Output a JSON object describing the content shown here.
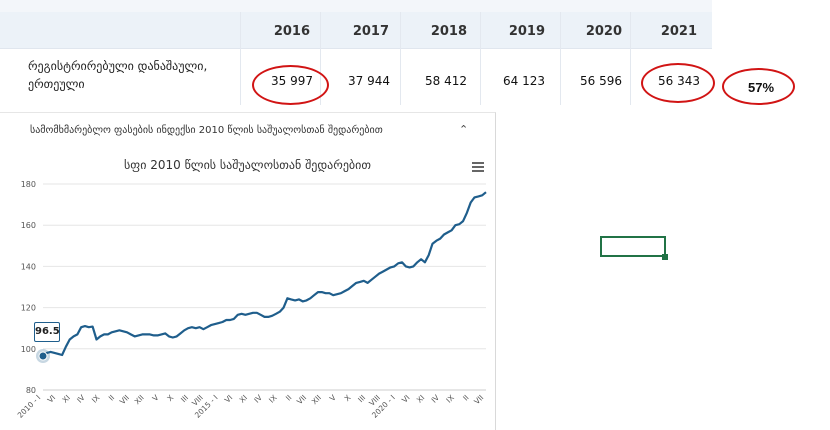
{
  "table": {
    "years": [
      "2016",
      "2017",
      "2018",
      "2019",
      "2020",
      "2021"
    ],
    "row_label_line1": "რეგისტრირებული დანაშაული,",
    "row_label_line2": "ერთეული",
    "values": [
      "35 997",
      "37 944",
      "58 412",
      "64 123",
      "56 596",
      "56 343"
    ],
    "circled_change": "57%",
    "colors": {
      "circle": "#d11414"
    }
  },
  "panel": {
    "title": "სამომხმარებლო ფასების ინდექსი 2010 წლის საშუალოსთან შედარებით",
    "collapse_icon": "chevron-up-icon",
    "menu_icon": "hamburger-menu-icon"
  },
  "chart_data": {
    "type": "line",
    "title": "სფი 2010 წლის საშუალოსთან შედარებით",
    "ylim": [
      80,
      180
    ],
    "yticks": [
      "80",
      "100",
      "120",
      "140",
      "160",
      "180"
    ],
    "xtick_labels": [
      "2010 - I",
      "VI",
      "XI",
      "IV",
      "IX",
      "II",
      "VII",
      "XII",
      "V",
      "X",
      "III",
      "VIII",
      "2015 - I",
      "VI",
      "XI",
      "IV",
      "IX",
      "II",
      "VII",
      "XII",
      "V",
      "X",
      "III",
      "VIII",
      "2020 - I",
      "VI",
      "XI",
      "IV",
      "IX",
      "II",
      "VII"
    ],
    "series": [
      {
        "color": "#1f5e8c",
        "values": [
          96.5,
          98.0,
          98.5,
          98.0,
          97.5,
          97.0,
          101.0,
          104.5,
          106.0,
          107.0,
          110.5,
          111.0,
          110.5,
          110.8,
          104.5,
          106.0,
          107.0,
          107.0,
          108.0,
          108.5,
          109.0,
          108.5,
          108.0,
          107.0,
          106.0,
          106.5,
          107.0,
          107.0,
          107.0,
          106.5,
          106.5,
          107.0,
          107.5,
          106.0,
          105.5,
          106.0,
          107.5,
          109.0,
          110.0,
          110.5,
          110.0,
          110.5,
          109.5,
          110.5,
          111.5,
          112.0,
          112.5,
          113.0,
          114.0,
          114.0,
          114.5,
          116.5,
          117.0,
          116.5,
          117.0,
          117.5,
          117.5,
          116.5,
          115.5,
          115.5,
          116.0,
          117.0,
          118.0,
          120.0,
          124.5,
          124.0,
          123.5,
          124.0,
          123.0,
          123.5,
          124.5,
          126.0,
          127.5,
          127.5,
          127.0,
          127.0,
          126.0,
          126.5,
          127.0,
          128.0,
          129.0,
          130.5,
          132.0,
          132.5,
          133.0,
          132.0,
          133.5,
          135.0,
          136.5,
          137.5,
          138.5,
          139.5,
          140.0,
          141.5,
          142.0,
          140.0,
          139.5,
          140.0,
          142.0,
          143.5,
          142.0,
          145.5,
          151.0,
          152.5,
          153.5,
          155.5,
          156.5,
          157.5,
          160.0,
          160.5,
          162.0,
          166.0,
          171.0,
          173.5,
          174.0,
          174.5,
          176.0
        ]
      }
    ],
    "annotation": "96.5",
    "grid": true,
    "legend": "none"
  },
  "spreadsheet": {
    "selected_cell_color": "#217346"
  }
}
